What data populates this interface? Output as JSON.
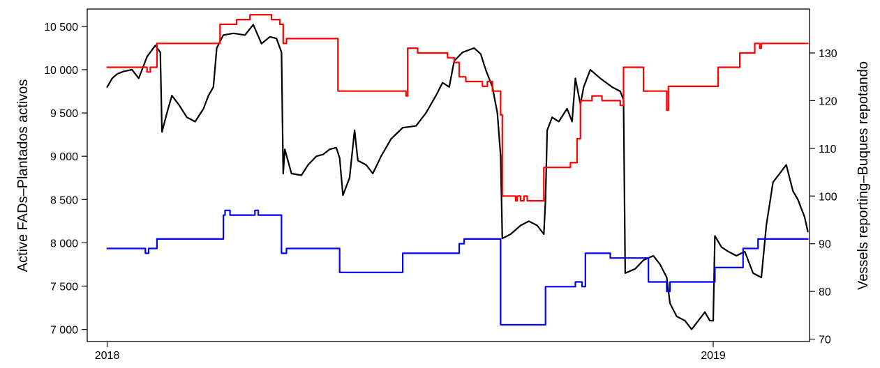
{
  "chart_data": {
    "type": "line",
    "title": "",
    "xlabel": "",
    "ylabel_left": "Active FADs–Plantados activos",
    "ylabel_right": "Vessels reporting–Buques repotando",
    "x_axis": {
      "range": [
        "2017-12-20",
        "2019-02-28"
      ],
      "ticks": [
        {
          "date": "2018-01-01",
          "label": "2018"
        },
        {
          "date": "2019-01-01",
          "label": "2019"
        }
      ]
    },
    "y_left": {
      "range": [
        6860,
        10700
      ],
      "ticks": [
        {
          "value": 7000,
          "label": "7 000"
        },
        {
          "value": 7500,
          "label": "7 500"
        },
        {
          "value": 8000,
          "label": "8 000"
        },
        {
          "value": 8500,
          "label": "8 500"
        },
        {
          "value": 9000,
          "label": "9 000"
        },
        {
          "value": 9500,
          "label": "9 500"
        },
        {
          "value": 10000,
          "label": "10 000"
        },
        {
          "value": 10500,
          "label": "10 500"
        }
      ]
    },
    "y_right": {
      "range": [
        69.5,
        139.2
      ],
      "ticks": [
        {
          "value": 70,
          "label": "70"
        },
        {
          "value": 80,
          "label": "80"
        },
        {
          "value": 90,
          "label": "90"
        },
        {
          "value": 100,
          "label": "100"
        },
        {
          "value": 110,
          "label": "110"
        },
        {
          "value": 120,
          "label": "120"
        },
        {
          "value": 130,
          "label": "130"
        }
      ]
    },
    "grid": false,
    "legend": "none",
    "series": [
      {
        "axis": "left",
        "color": "#000000",
        "style": "solid",
        "points": [
          [
            "2018-01-01",
            9800
          ],
          [
            "2018-01-04",
            9900
          ],
          [
            "2018-01-07",
            9950
          ],
          [
            "2018-01-11",
            9980
          ],
          [
            "2018-01-16",
            10000
          ],
          [
            "2018-01-20",
            9900
          ],
          [
            "2018-01-25",
            10150
          ],
          [
            "2018-01-30",
            10280
          ],
          [
            "2018-02-02",
            10200
          ],
          [
            "2018-02-03",
            9280
          ],
          [
            "2018-02-06",
            9500
          ],
          [
            "2018-02-09",
            9700
          ],
          [
            "2018-02-13",
            9600
          ],
          [
            "2018-02-18",
            9450
          ],
          [
            "2018-02-23",
            9400
          ],
          [
            "2018-02-28",
            9550
          ],
          [
            "2018-03-03",
            9700
          ],
          [
            "2018-03-06",
            9800
          ],
          [
            "2018-03-08",
            10250
          ],
          [
            "2018-03-12",
            10400
          ],
          [
            "2018-03-18",
            10420
          ],
          [
            "2018-03-25",
            10400
          ],
          [
            "2018-03-30",
            10520
          ],
          [
            "2018-04-04",
            10300
          ],
          [
            "2018-04-09",
            10380
          ],
          [
            "2018-04-13",
            10360
          ],
          [
            "2018-04-16",
            10200
          ],
          [
            "2018-04-17",
            8800
          ],
          [
            "2018-04-18",
            9080
          ],
          [
            "2018-04-22",
            8800
          ],
          [
            "2018-04-28",
            8780
          ],
          [
            "2018-05-02",
            8900
          ],
          [
            "2018-05-07",
            9000
          ],
          [
            "2018-05-11",
            9020
          ],
          [
            "2018-05-15",
            9080
          ],
          [
            "2018-05-19",
            9100
          ],
          [
            "2018-05-21",
            8980
          ],
          [
            "2018-05-23",
            8550
          ],
          [
            "2018-05-27",
            8750
          ],
          [
            "2018-05-30",
            9300
          ],
          [
            "2018-06-01",
            8950
          ],
          [
            "2018-06-06",
            8900
          ],
          [
            "2018-06-10",
            8800
          ],
          [
            "2018-06-15",
            9000
          ],
          [
            "2018-06-21",
            9200
          ],
          [
            "2018-06-28",
            9330
          ],
          [
            "2018-07-06",
            9350
          ],
          [
            "2018-07-12",
            9500
          ],
          [
            "2018-07-18",
            9700
          ],
          [
            "2018-07-22",
            9850
          ],
          [
            "2018-07-26",
            9800
          ],
          [
            "2018-07-29",
            10100
          ],
          [
            "2018-08-03",
            10200
          ],
          [
            "2018-08-10",
            10250
          ],
          [
            "2018-08-14",
            10180
          ],
          [
            "2018-08-17",
            10000
          ],
          [
            "2018-08-21",
            9800
          ],
          [
            "2018-08-24",
            9500
          ],
          [
            "2018-08-26",
            9000
          ],
          [
            "2018-08-27",
            8050
          ],
          [
            "2018-09-01",
            8100
          ],
          [
            "2018-09-07",
            8200
          ],
          [
            "2018-09-12",
            8250
          ],
          [
            "2018-09-17",
            8200
          ],
          [
            "2018-09-21",
            8100
          ],
          [
            "2018-09-22",
            8500
          ],
          [
            "2018-09-23",
            9300
          ],
          [
            "2018-09-26",
            9450
          ],
          [
            "2018-09-30",
            9400
          ],
          [
            "2018-10-05",
            9550
          ],
          [
            "2018-10-08",
            9400
          ],
          [
            "2018-10-10",
            9900
          ],
          [
            "2018-10-13",
            9600
          ],
          [
            "2018-10-15",
            9800
          ],
          [
            "2018-10-19",
            10000
          ],
          [
            "2018-10-25",
            9900
          ],
          [
            "2018-11-01",
            9800
          ],
          [
            "2018-11-06",
            9750
          ],
          [
            "2018-11-08",
            9650
          ],
          [
            "2018-11-09",
            7650
          ],
          [
            "2018-11-15",
            7700
          ],
          [
            "2018-11-20",
            7800
          ],
          [
            "2018-11-26",
            7850
          ],
          [
            "2018-11-30",
            7750
          ],
          [
            "2018-12-04",
            7600
          ],
          [
            "2018-12-06",
            7300
          ],
          [
            "2018-12-10",
            7150
          ],
          [
            "2018-12-15",
            7100
          ],
          [
            "2018-12-19",
            7000
          ],
          [
            "2018-12-23",
            7100
          ],
          [
            "2018-12-27",
            7200
          ],
          [
            "2018-12-30",
            7100
          ],
          [
            "2019-01-01",
            7100
          ],
          [
            "2019-01-02",
            8080
          ],
          [
            "2019-01-06",
            7950
          ],
          [
            "2019-01-10",
            7900
          ],
          [
            "2019-01-15",
            7850
          ],
          [
            "2019-01-20",
            7900
          ],
          [
            "2019-01-25",
            7650
          ],
          [
            "2019-01-30",
            7600
          ],
          [
            "2019-02-02",
            8200
          ],
          [
            "2019-02-06",
            8700
          ],
          [
            "2019-02-10",
            8800
          ],
          [
            "2019-02-14",
            8900
          ],
          [
            "2019-02-18",
            8600
          ],
          [
            "2019-02-21",
            8500
          ],
          [
            "2019-02-23",
            8400
          ],
          [
            "2019-02-25",
            8300
          ],
          [
            "2019-02-27",
            8130
          ]
        ]
      },
      {
        "axis": "right",
        "color": "#ff0000",
        "style": "step",
        "points": [
          [
            "2018-01-01",
            127
          ],
          [
            "2018-01-25",
            126
          ],
          [
            "2018-01-27",
            127
          ],
          [
            "2018-01-31",
            132
          ],
          [
            "2018-03-10",
            136
          ],
          [
            "2018-03-20",
            137
          ],
          [
            "2018-03-28",
            138
          ],
          [
            "2018-04-10",
            137
          ],
          [
            "2018-04-15",
            136
          ],
          [
            "2018-04-17",
            132
          ],
          [
            "2018-04-19",
            133
          ],
          [
            "2018-05-20",
            122
          ],
          [
            "2018-06-30",
            121
          ],
          [
            "2018-07-01",
            131
          ],
          [
            "2018-07-07",
            130
          ],
          [
            "2018-07-25",
            129
          ],
          [
            "2018-07-29",
            128
          ],
          [
            "2018-08-01",
            125
          ],
          [
            "2018-08-05",
            124
          ],
          [
            "2018-08-15",
            123
          ],
          [
            "2018-08-18",
            124
          ],
          [
            "2018-08-21",
            122
          ],
          [
            "2018-08-26",
            117
          ],
          [
            "2018-08-27",
            100
          ],
          [
            "2018-09-04",
            99
          ],
          [
            "2018-09-05",
            100
          ],
          [
            "2018-09-07",
            99
          ],
          [
            "2018-09-09",
            100
          ],
          [
            "2018-09-11",
            99
          ],
          [
            "2018-09-21",
            106
          ],
          [
            "2018-10-07",
            107
          ],
          [
            "2018-10-11",
            112
          ],
          [
            "2018-10-13",
            120
          ],
          [
            "2018-10-20",
            121
          ],
          [
            "2018-10-26",
            120
          ],
          [
            "2018-11-06",
            119
          ],
          [
            "2018-11-08",
            127
          ],
          [
            "2018-11-20",
            122
          ],
          [
            "2018-12-04",
            118
          ],
          [
            "2018-12-05",
            123
          ],
          [
            "2018-12-21",
            123
          ],
          [
            "2019-01-04",
            127
          ],
          [
            "2019-01-17",
            130
          ],
          [
            "2019-01-26",
            132
          ],
          [
            "2019-01-29",
            131
          ],
          [
            "2019-01-30",
            132
          ],
          [
            "2019-02-27",
            132
          ]
        ]
      },
      {
        "axis": "right",
        "color": "#0000ff",
        "style": "step",
        "points": [
          [
            "2018-01-01",
            89
          ],
          [
            "2018-01-24",
            88
          ],
          [
            "2018-01-26",
            89
          ],
          [
            "2018-01-31",
            91
          ],
          [
            "2018-03-12",
            96
          ],
          [
            "2018-03-13",
            97
          ],
          [
            "2018-03-16",
            96
          ],
          [
            "2018-03-31",
            97
          ],
          [
            "2018-04-02",
            96
          ],
          [
            "2018-04-16",
            88
          ],
          [
            "2018-04-19",
            89
          ],
          [
            "2018-05-21",
            84
          ],
          [
            "2018-06-28",
            88
          ],
          [
            "2018-08-01",
            90
          ],
          [
            "2018-08-04",
            91
          ],
          [
            "2018-08-26",
            73
          ],
          [
            "2018-09-22",
            81
          ],
          [
            "2018-10-10",
            82
          ],
          [
            "2018-10-14",
            81
          ],
          [
            "2018-10-16",
            88
          ],
          [
            "2018-10-31",
            87
          ],
          [
            "2018-11-23",
            82
          ],
          [
            "2018-12-04",
            80
          ],
          [
            "2018-12-06",
            82
          ],
          [
            "2019-01-02",
            85
          ],
          [
            "2019-01-19",
            89
          ],
          [
            "2019-01-28",
            91
          ],
          [
            "2019-02-27",
            91
          ]
        ]
      }
    ]
  }
}
